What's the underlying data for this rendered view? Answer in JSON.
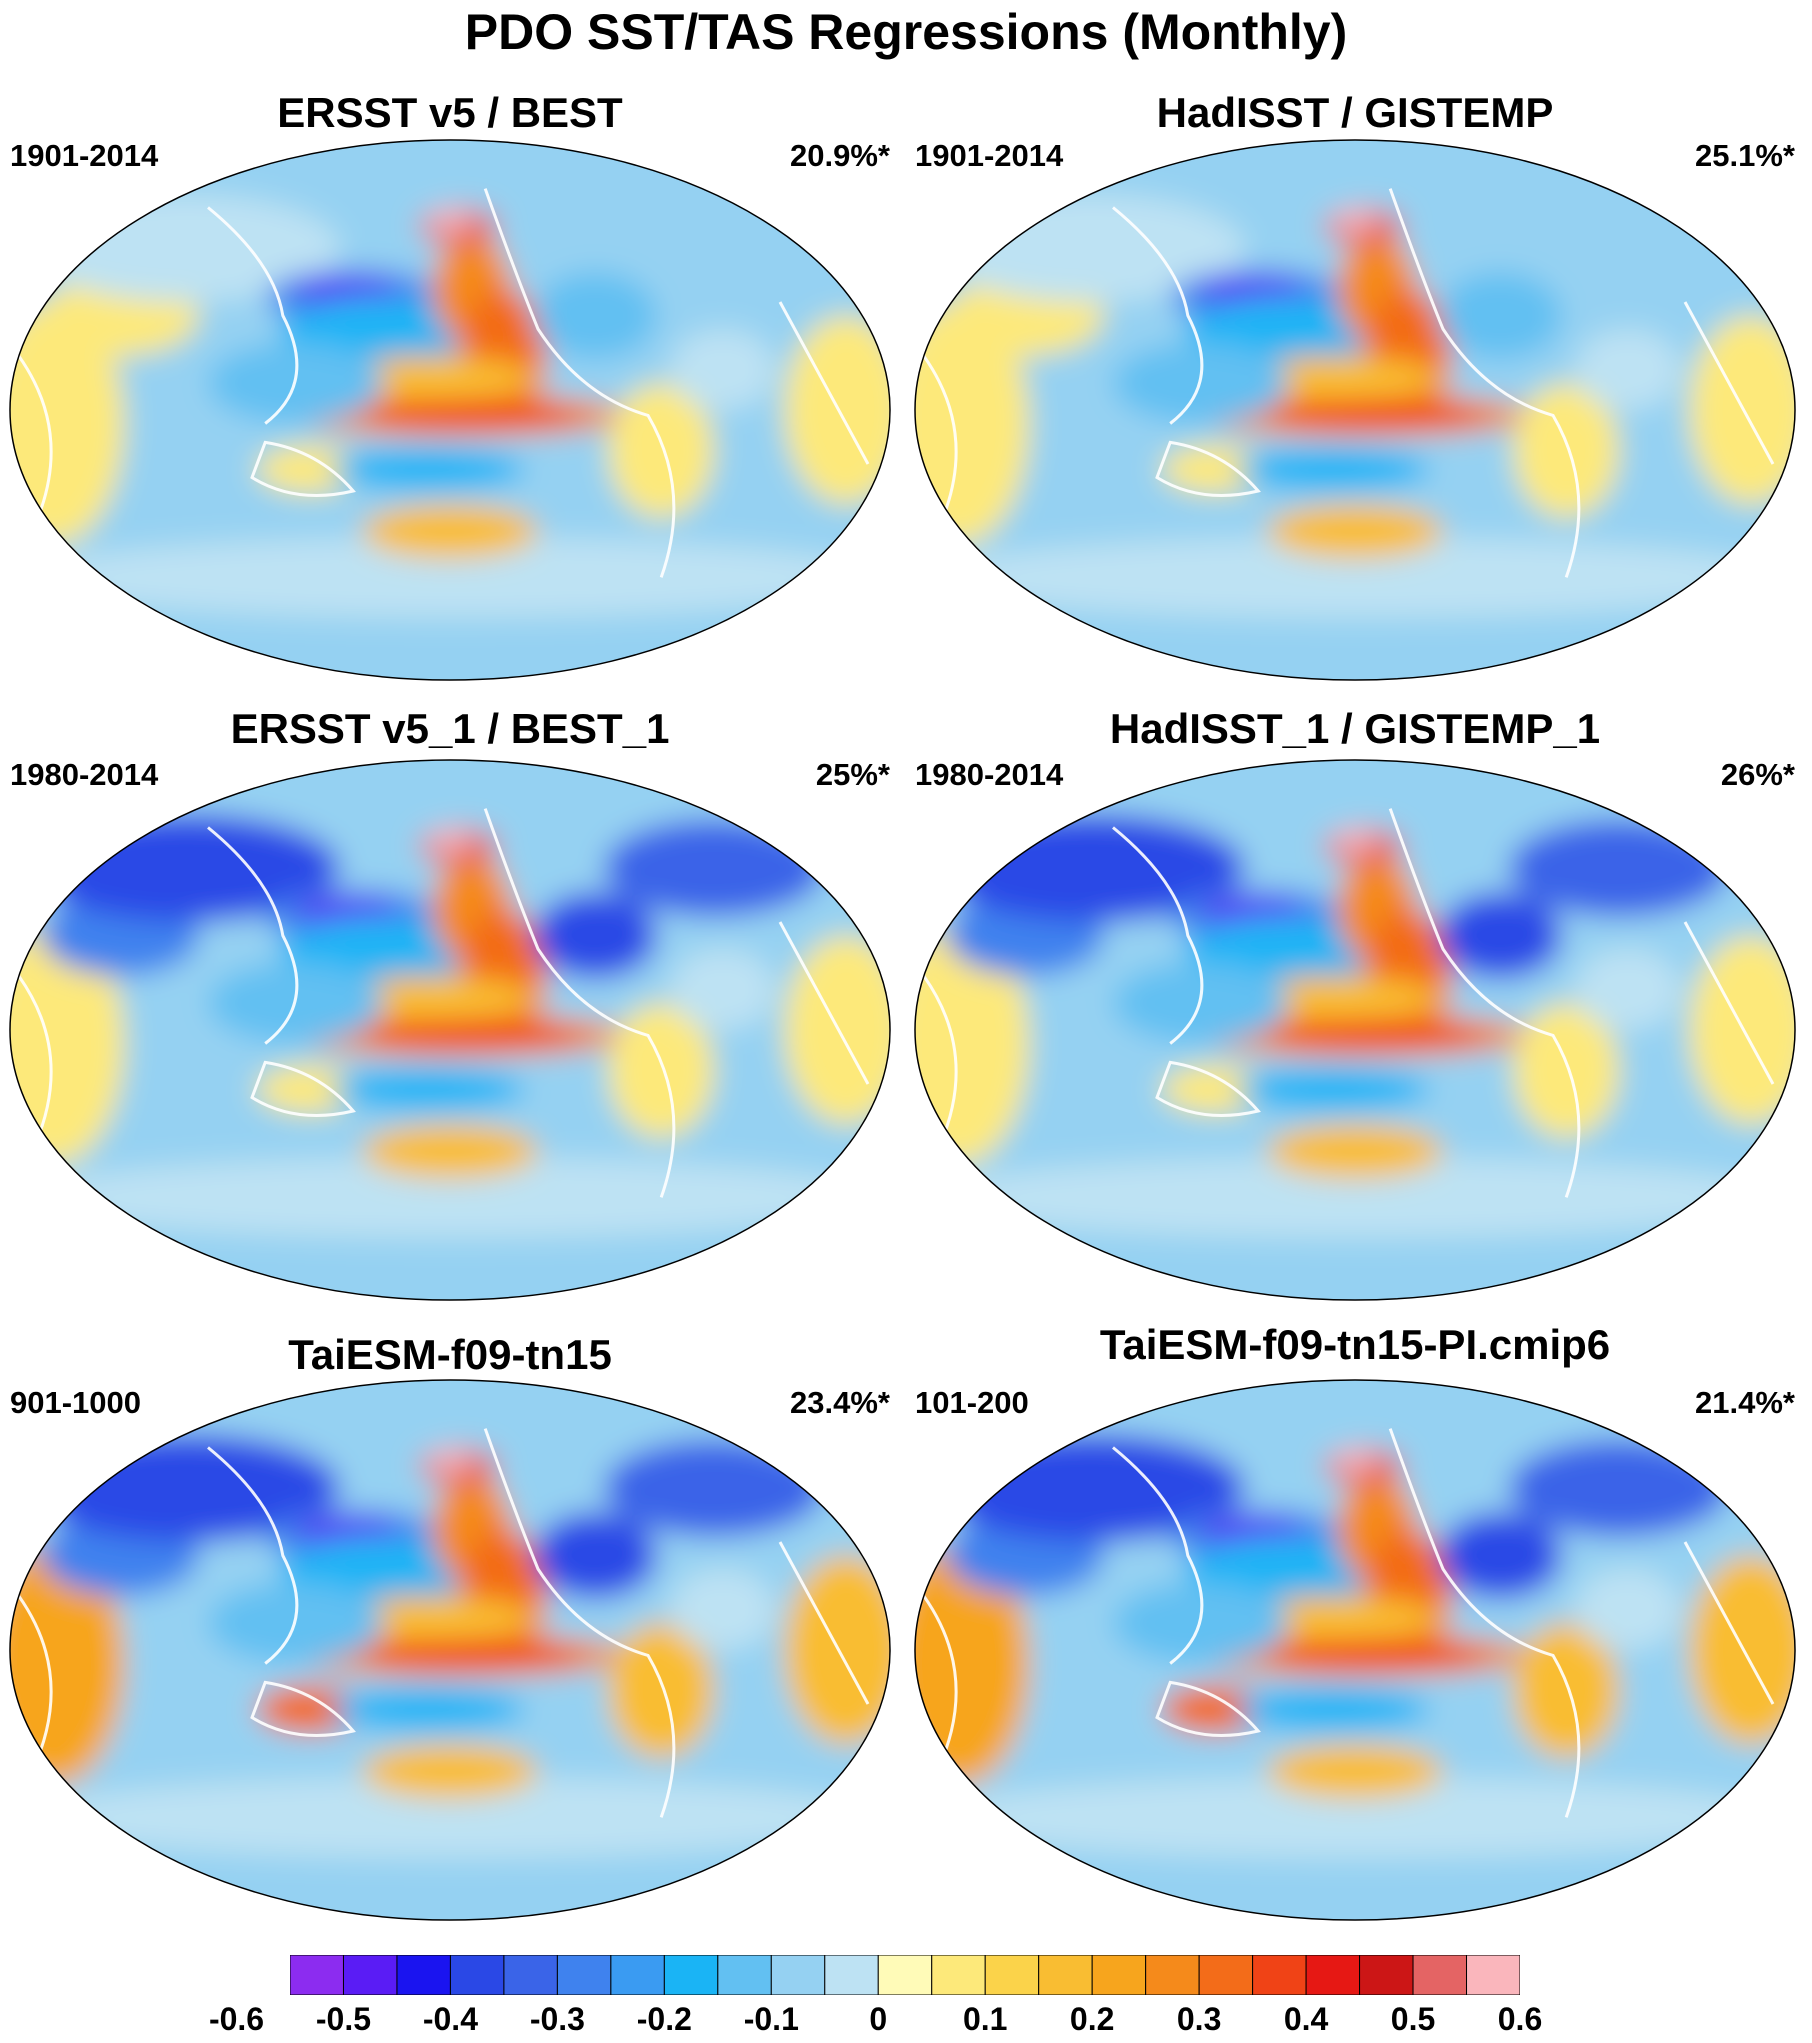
{
  "figure": {
    "title": "PDO SST/TAS Regressions (Monthly)"
  },
  "panels": [
    {
      "title": "ERSST v5 / BEST",
      "period": "1901-2014",
      "variance": "20.9%*"
    },
    {
      "title": "HadISST / GISTEMP",
      "period": "1901-2014",
      "variance": "25.1%*"
    },
    {
      "title": "ERSST v5_1 / BEST_1",
      "period": "1980-2014",
      "variance": "25%*"
    },
    {
      "title": "HadISST_1 / GISTEMP_1",
      "period": "1980-2014",
      "variance": "26%*"
    },
    {
      "title": "TaiESM-f09-tn15",
      "period": "901-1000",
      "variance": "23.4%*"
    },
    {
      "title": "TaiESM-f09-tn15-PI.cmip6",
      "period": "101-200",
      "variance": "21.4%*"
    }
  ],
  "colorbar": {
    "labels": [
      "-0.6",
      "-0.5",
      "-0.4",
      "-0.3",
      "-0.2",
      "-0.1",
      "0",
      "0.1",
      "0.2",
      "0.3",
      "0.4",
      "0.5",
      "0.6"
    ],
    "colors": [
      "#8c2cf0",
      "#5a1cf5",
      "#1a14f0",
      "#2a48e6",
      "#3a64e8",
      "#3f82ee",
      "#3a9bf2",
      "#1ab4f5",
      "#62c0f2",
      "#95d1f2",
      "#bde2f3",
      "#fffbb8",
      "#fde97a",
      "#fbd34a",
      "#f9bd32",
      "#f7a51d",
      "#f58a1b",
      "#f36c19",
      "#f04316",
      "#e61814",
      "#cc1616",
      "#e46464",
      "#fab6bc"
    ]
  }
}
